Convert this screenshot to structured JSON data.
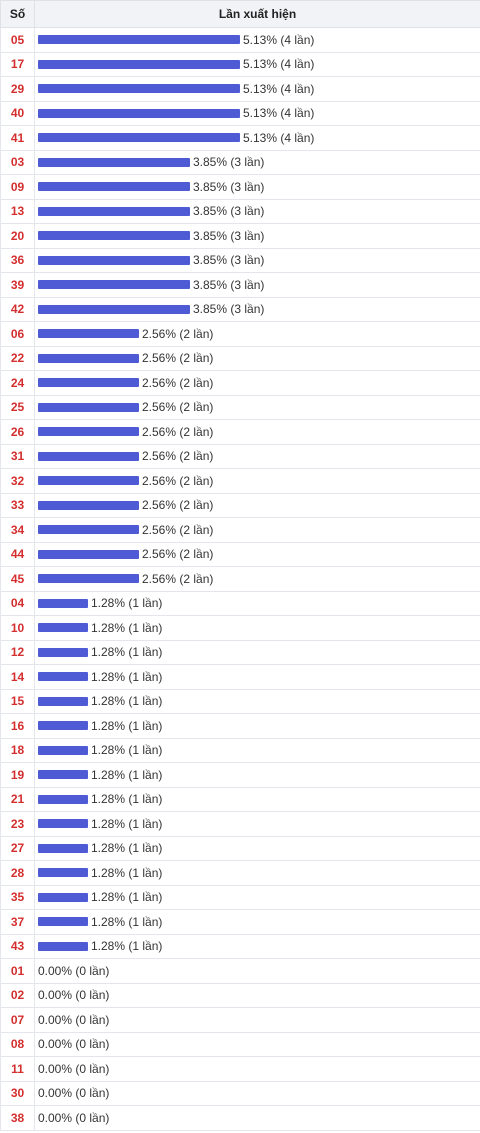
{
  "header": {
    "col_number": "Số",
    "col_times": "Lần xuất hiện"
  },
  "colors": {
    "bar": "#4f5bd5",
    "number": "#d32f2f"
  },
  "chart_data": {
    "type": "bar",
    "orientation": "horizontal",
    "rows": [
      {
        "number": "05",
        "percent": 5.13,
        "count": 4,
        "label": "5.13% (4 lần)"
      },
      {
        "number": "17",
        "percent": 5.13,
        "count": 4,
        "label": "5.13% (4 lần)"
      },
      {
        "number": "29",
        "percent": 5.13,
        "count": 4,
        "label": "5.13% (4 lần)"
      },
      {
        "number": "40",
        "percent": 5.13,
        "count": 4,
        "label": "5.13% (4 lần)"
      },
      {
        "number": "41",
        "percent": 5.13,
        "count": 4,
        "label": "5.13% (4 lần)"
      },
      {
        "number": "03",
        "percent": 3.85,
        "count": 3,
        "label": "3.85% (3 lần)"
      },
      {
        "number": "09",
        "percent": 3.85,
        "count": 3,
        "label": "3.85% (3 lần)"
      },
      {
        "number": "13",
        "percent": 3.85,
        "count": 3,
        "label": "3.85% (3 lần)"
      },
      {
        "number": "20",
        "percent": 3.85,
        "count": 3,
        "label": "3.85% (3 lần)"
      },
      {
        "number": "36",
        "percent": 3.85,
        "count": 3,
        "label": "3.85% (3 lần)"
      },
      {
        "number": "39",
        "percent": 3.85,
        "count": 3,
        "label": "3.85% (3 lần)"
      },
      {
        "number": "42",
        "percent": 3.85,
        "count": 3,
        "label": "3.85% (3 lần)"
      },
      {
        "number": "06",
        "percent": 2.56,
        "count": 2,
        "label": "2.56% (2 lần)"
      },
      {
        "number": "22",
        "percent": 2.56,
        "count": 2,
        "label": "2.56% (2 lần)"
      },
      {
        "number": "24",
        "percent": 2.56,
        "count": 2,
        "label": "2.56% (2 lần)"
      },
      {
        "number": "25",
        "percent": 2.56,
        "count": 2,
        "label": "2.56% (2 lần)"
      },
      {
        "number": "26",
        "percent": 2.56,
        "count": 2,
        "label": "2.56% (2 lần)"
      },
      {
        "number": "31",
        "percent": 2.56,
        "count": 2,
        "label": "2.56% (2 lần)"
      },
      {
        "number": "32",
        "percent": 2.56,
        "count": 2,
        "label": "2.56% (2 lần)"
      },
      {
        "number": "33",
        "percent": 2.56,
        "count": 2,
        "label": "2.56% (2 lần)"
      },
      {
        "number": "34",
        "percent": 2.56,
        "count": 2,
        "label": "2.56% (2 lần)"
      },
      {
        "number": "44",
        "percent": 2.56,
        "count": 2,
        "label": "2.56% (2 lần)"
      },
      {
        "number": "45",
        "percent": 2.56,
        "count": 2,
        "label": "2.56% (2 lần)"
      },
      {
        "number": "04",
        "percent": 1.28,
        "count": 1,
        "label": "1.28% (1 lần)"
      },
      {
        "number": "10",
        "percent": 1.28,
        "count": 1,
        "label": "1.28% (1 lần)"
      },
      {
        "number": "12",
        "percent": 1.28,
        "count": 1,
        "label": "1.28% (1 lần)"
      },
      {
        "number": "14",
        "percent": 1.28,
        "count": 1,
        "label": "1.28% (1 lần)"
      },
      {
        "number": "15",
        "percent": 1.28,
        "count": 1,
        "label": "1.28% (1 lần)"
      },
      {
        "number": "16",
        "percent": 1.28,
        "count": 1,
        "label": "1.28% (1 lần)"
      },
      {
        "number": "18",
        "percent": 1.28,
        "count": 1,
        "label": "1.28% (1 lần)"
      },
      {
        "number": "19",
        "percent": 1.28,
        "count": 1,
        "label": "1.28% (1 lần)"
      },
      {
        "number": "21",
        "percent": 1.28,
        "count": 1,
        "label": "1.28% (1 lần)"
      },
      {
        "number": "23",
        "percent": 1.28,
        "count": 1,
        "label": "1.28% (1 lần)"
      },
      {
        "number": "27",
        "percent": 1.28,
        "count": 1,
        "label": "1.28% (1 lần)"
      },
      {
        "number": "28",
        "percent": 1.28,
        "count": 1,
        "label": "1.28% (1 lần)"
      },
      {
        "number": "35",
        "percent": 1.28,
        "count": 1,
        "label": "1.28% (1 lần)"
      },
      {
        "number": "37",
        "percent": 1.28,
        "count": 1,
        "label": "1.28% (1 lần)"
      },
      {
        "number": "43",
        "percent": 1.28,
        "count": 1,
        "label": "1.28% (1 lần)"
      },
      {
        "number": "01",
        "percent": 0,
        "count": 0,
        "label": "0.00% (0 lần)"
      },
      {
        "number": "02",
        "percent": 0,
        "count": 0,
        "label": "0.00% (0 lần)"
      },
      {
        "number": "07",
        "percent": 0,
        "count": 0,
        "label": "0.00% (0 lần)"
      },
      {
        "number": "08",
        "percent": 0,
        "count": 0,
        "label": "0.00% (0 lần)"
      },
      {
        "number": "11",
        "percent": 0,
        "count": 0,
        "label": "0.00% (0 lần)"
      },
      {
        "number": "30",
        "percent": 0,
        "count": 0,
        "label": "0.00% (0 lần)"
      },
      {
        "number": "38",
        "percent": 0,
        "count": 0,
        "label": "0.00% (0 lần)"
      }
    ]
  }
}
